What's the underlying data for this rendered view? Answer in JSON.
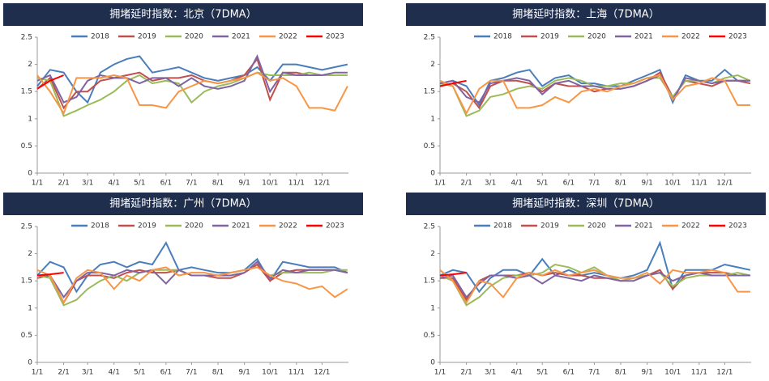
{
  "chart_data": [
    {
      "type": "line",
      "title": "拥堵延时指数：北京（7DMA）",
      "x": [
        1,
        16,
        32,
        47,
        60,
        75,
        91,
        106,
        121,
        136,
        152,
        167,
        182,
        197,
        213,
        228,
        244,
        259,
        274,
        289,
        305,
        320,
        335,
        350,
        365
      ],
      "xlim": [
        1,
        366
      ],
      "xticks": [
        {
          "value": 1,
          "label": "1/1"
        },
        {
          "value": 32,
          "label": "2/1"
        },
        {
          "value": 60,
          "label": "3/1"
        },
        {
          "value": 91,
          "label": "4/1"
        },
        {
          "value": 121,
          "label": "5/1"
        },
        {
          "value": 152,
          "label": "6/1"
        },
        {
          "value": 182,
          "label": "7/1"
        },
        {
          "value": 213,
          "label": "8/1"
        },
        {
          "value": 244,
          "label": "9/1"
        },
        {
          "value": 274,
          "label": "10/1"
        },
        {
          "value": 305,
          "label": "11/1"
        },
        {
          "value": 335,
          "label": "12/1"
        }
      ],
      "ylim": [
        0,
        2.5
      ],
      "yticks": [
        0,
        0.5,
        1,
        1.5,
        2,
        2.5
      ],
      "series": [
        {
          "name": "2018",
          "color": "#4a7ebb",
          "values": [
            1.6,
            1.9,
            1.85,
            1.5,
            1.3,
            1.85,
            2.0,
            2.1,
            2.15,
            1.85,
            1.9,
            1.95,
            1.85,
            1.75,
            1.7,
            1.75,
            1.8,
            1.95,
            1.7,
            2.0,
            2.0,
            1.95,
            1.9,
            1.95,
            2.0
          ]
        },
        {
          "name": "2019",
          "color": "#c0504d",
          "values": [
            1.55,
            1.75,
            1.2,
            1.5,
            1.5,
            1.7,
            1.75,
            1.8,
            1.85,
            1.7,
            1.75,
            1.75,
            1.8,
            1.7,
            1.65,
            1.7,
            1.8,
            2.1,
            1.35,
            1.85,
            1.85,
            1.8,
            1.8,
            1.8,
            1.8
          ]
        },
        {
          "name": "2020",
          "color": "#9bbb59",
          "values": [
            1.75,
            1.7,
            1.05,
            1.15,
            1.25,
            1.35,
            1.5,
            1.7,
            1.8,
            1.65,
            1.7,
            1.65,
            1.3,
            1.5,
            1.6,
            1.65,
            1.75,
            1.85,
            1.8,
            1.8,
            1.8,
            1.85,
            1.8,
            1.8,
            1.8
          ]
        },
        {
          "name": "2021",
          "color": "#8064a2",
          "values": [
            1.7,
            1.8,
            1.3,
            1.4,
            1.7,
            1.8,
            1.75,
            1.75,
            1.65,
            1.75,
            1.75,
            1.6,
            1.75,
            1.6,
            1.55,
            1.6,
            1.7,
            2.15,
            1.5,
            1.85,
            1.8,
            1.8,
            1.8,
            1.85,
            1.85
          ]
        },
        {
          "name": "2022",
          "color": "#f79646",
          "values": [
            1.8,
            1.5,
            1.1,
            1.75,
            1.75,
            1.75,
            1.8,
            1.75,
            1.25,
            1.25,
            1.2,
            1.5,
            1.6,
            1.7,
            1.65,
            1.7,
            1.75,
            1.85,
            1.7,
            1.75,
            1.6,
            1.2,
            1.2,
            1.15,
            1.6
          ]
        },
        {
          "name": "2023",
          "color": "#ff0000",
          "values": [
            1.55,
            1.7,
            1.8,
            null,
            null,
            null,
            null,
            null,
            null,
            null,
            null,
            null,
            null,
            null,
            null,
            null,
            null,
            null,
            null,
            null,
            null,
            null,
            null,
            null,
            null
          ]
        }
      ]
    },
    {
      "type": "line",
      "title": "拥堵延时指数：上海（7DMA）",
      "x": [
        1,
        16,
        32,
        47,
        60,
        75,
        91,
        106,
        121,
        136,
        152,
        167,
        182,
        197,
        213,
        228,
        244,
        259,
        274,
        289,
        305,
        320,
        335,
        350,
        365
      ],
      "xlim": [
        1,
        366
      ],
      "xticks": [
        {
          "value": 1,
          "label": "1/1"
        },
        {
          "value": 32,
          "label": "2/1"
        },
        {
          "value": 60,
          "label": "3/1"
        },
        {
          "value": 91,
          "label": "4/1"
        },
        {
          "value": 121,
          "label": "5/1"
        },
        {
          "value": 152,
          "label": "6/1"
        },
        {
          "value": 182,
          "label": "7/1"
        },
        {
          "value": 213,
          "label": "8/1"
        },
        {
          "value": 244,
          "label": "9/1"
        },
        {
          "value": 274,
          "label": "10/1"
        },
        {
          "value": 305,
          "label": "11/1"
        },
        {
          "value": 335,
          "label": "12/1"
        }
      ],
      "ylim": [
        0,
        2.5
      ],
      "yticks": [
        0,
        0.5,
        1,
        1.5,
        2,
        2.5
      ],
      "series": [
        {
          "name": "2018",
          "color": "#4a7ebb",
          "values": [
            1.65,
            1.7,
            1.6,
            1.25,
            1.7,
            1.75,
            1.85,
            1.9,
            1.6,
            1.75,
            1.8,
            1.65,
            1.65,
            1.6,
            1.6,
            1.7,
            1.8,
            1.9,
            1.3,
            1.8,
            1.7,
            1.7,
            1.9,
            1.7,
            1.7
          ]
        },
        {
          "name": "2019",
          "color": "#c0504d",
          "values": [
            1.6,
            1.65,
            1.5,
            1.2,
            1.6,
            1.7,
            1.7,
            1.65,
            1.5,
            1.65,
            1.6,
            1.6,
            1.5,
            1.55,
            1.55,
            1.6,
            1.7,
            1.85,
            1.4,
            1.7,
            1.65,
            1.6,
            1.7,
            1.7,
            1.65
          ]
        },
        {
          "name": "2020",
          "color": "#9bbb59",
          "values": [
            1.65,
            1.6,
            1.05,
            1.15,
            1.4,
            1.45,
            1.55,
            1.6,
            1.55,
            1.7,
            1.75,
            1.7,
            1.6,
            1.6,
            1.65,
            1.65,
            1.75,
            1.75,
            1.4,
            1.7,
            1.7,
            1.65,
            1.75,
            1.8,
            1.7
          ]
        },
        {
          "name": "2021",
          "color": "#8064a2",
          "values": [
            1.65,
            1.7,
            1.4,
            1.3,
            1.65,
            1.7,
            1.75,
            1.7,
            1.45,
            1.65,
            1.7,
            1.6,
            1.6,
            1.55,
            1.55,
            1.6,
            1.7,
            1.8,
            1.35,
            1.75,
            1.7,
            1.65,
            1.7,
            1.7,
            1.7
          ]
        },
        {
          "name": "2022",
          "color": "#f79646",
          "values": [
            1.7,
            1.6,
            1.1,
            1.55,
            1.7,
            1.7,
            1.2,
            1.2,
            1.25,
            1.4,
            1.3,
            1.5,
            1.55,
            1.5,
            1.6,
            1.65,
            1.75,
            1.8,
            1.35,
            1.6,
            1.65,
            1.75,
            1.7,
            1.25,
            1.25
          ]
        },
        {
          "name": "2023",
          "color": "#ff0000",
          "values": [
            1.6,
            1.65,
            1.7,
            null,
            null,
            null,
            null,
            null,
            null,
            null,
            null,
            null,
            null,
            null,
            null,
            null,
            null,
            null,
            null,
            null,
            null,
            null,
            null,
            null,
            null
          ]
        }
      ]
    },
    {
      "type": "line",
      "title": "拥堵延时指数：广州（7DMA）",
      "x": [
        1,
        16,
        32,
        47,
        60,
        75,
        91,
        106,
        121,
        136,
        152,
        167,
        182,
        197,
        213,
        228,
        244,
        259,
        274,
        289,
        305,
        320,
        335,
        350,
        365
      ],
      "xlim": [
        1,
        366
      ],
      "xticks": [
        {
          "value": 1,
          "label": "1/1"
        },
        {
          "value": 32,
          "label": "2/1"
        },
        {
          "value": 60,
          "label": "3/1"
        },
        {
          "value": 91,
          "label": "4/1"
        },
        {
          "value": 121,
          "label": "5/1"
        },
        {
          "value": 152,
          "label": "6/1"
        },
        {
          "value": 182,
          "label": "7/1"
        },
        {
          "value": 213,
          "label": "8/1"
        },
        {
          "value": 244,
          "label": "9/1"
        },
        {
          "value": 274,
          "label": "10/1"
        },
        {
          "value": 305,
          "label": "11/1"
        },
        {
          "value": 335,
          "label": "12/1"
        }
      ],
      "ylim": [
        0,
        2.5
      ],
      "yticks": [
        0,
        0.5,
        1,
        1.5,
        2,
        2.5
      ],
      "series": [
        {
          "name": "2018",
          "color": "#4a7ebb",
          "values": [
            1.6,
            1.85,
            1.75,
            1.3,
            1.6,
            1.8,
            1.85,
            1.75,
            1.85,
            1.8,
            2.2,
            1.7,
            1.75,
            1.7,
            1.65,
            1.65,
            1.7,
            1.9,
            1.5,
            1.85,
            1.8,
            1.75,
            1.75,
            1.75,
            1.65
          ]
        },
        {
          "name": "2019",
          "color": "#c0504d",
          "values": [
            1.55,
            1.6,
            1.1,
            1.5,
            1.6,
            1.6,
            1.55,
            1.65,
            1.7,
            1.65,
            1.65,
            1.7,
            1.6,
            1.6,
            1.55,
            1.55,
            1.65,
            1.8,
            1.5,
            1.65,
            1.7,
            1.7,
            1.7,
            1.7,
            1.65
          ]
        },
        {
          "name": "2020",
          "color": "#9bbb59",
          "values": [
            1.6,
            1.55,
            1.05,
            1.15,
            1.35,
            1.5,
            1.6,
            1.5,
            1.65,
            1.7,
            1.7,
            1.7,
            1.6,
            1.6,
            1.6,
            1.65,
            1.7,
            1.75,
            1.6,
            1.65,
            1.65,
            1.65,
            1.65,
            1.7,
            1.7
          ]
        },
        {
          "name": "2021",
          "color": "#8064a2",
          "values": [
            1.6,
            1.6,
            1.2,
            1.5,
            1.65,
            1.65,
            1.6,
            1.7,
            1.65,
            1.7,
            1.45,
            1.7,
            1.6,
            1.6,
            1.6,
            1.6,
            1.65,
            1.85,
            1.55,
            1.7,
            1.65,
            1.7,
            1.7,
            1.7,
            1.65
          ]
        },
        {
          "name": "2022",
          "color": "#f79646",
          "values": [
            1.7,
            1.6,
            1.1,
            1.55,
            1.7,
            1.65,
            1.35,
            1.6,
            1.5,
            1.7,
            1.75,
            1.6,
            1.65,
            1.65,
            1.6,
            1.65,
            1.7,
            1.75,
            1.6,
            1.5,
            1.45,
            1.35,
            1.4,
            1.2,
            1.35
          ]
        },
        {
          "name": "2023",
          "color": "#ff0000",
          "values": [
            1.6,
            1.62,
            1.65,
            null,
            null,
            null,
            null,
            null,
            null,
            null,
            null,
            null,
            null,
            null,
            null,
            null,
            null,
            null,
            null,
            null,
            null,
            null,
            null,
            null,
            null
          ]
        }
      ]
    },
    {
      "type": "line",
      "title": "拥堵延时指数：深圳（7DMA）",
      "x": [
        1,
        16,
        32,
        47,
        60,
        75,
        91,
        106,
        121,
        136,
        152,
        167,
        182,
        197,
        213,
        228,
        244,
        259,
        274,
        289,
        305,
        320,
        335,
        350,
        365
      ],
      "xlim": [
        1,
        366
      ],
      "xticks": [
        {
          "value": 1,
          "label": "1/1"
        },
        {
          "value": 32,
          "label": "2/1"
        },
        {
          "value": 60,
          "label": "3/1"
        },
        {
          "value": 91,
          "label": "4/1"
        },
        {
          "value": 121,
          "label": "5/1"
        },
        {
          "value": 152,
          "label": "6/1"
        },
        {
          "value": 182,
          "label": "7/1"
        },
        {
          "value": 213,
          "label": "8/1"
        },
        {
          "value": 244,
          "label": "9/1"
        },
        {
          "value": 274,
          "label": "10/1"
        },
        {
          "value": 305,
          "label": "11/1"
        },
        {
          "value": 335,
          "label": "12/1"
        }
      ],
      "ylim": [
        0,
        2.5
      ],
      "yticks": [
        0,
        0.5,
        1,
        1.5,
        2,
        2.5
      ],
      "series": [
        {
          "name": "2018",
          "color": "#4a7ebb",
          "values": [
            1.6,
            1.7,
            1.65,
            1.3,
            1.55,
            1.7,
            1.7,
            1.6,
            1.9,
            1.6,
            1.7,
            1.6,
            1.65,
            1.6,
            1.55,
            1.6,
            1.7,
            2.2,
            1.35,
            1.7,
            1.7,
            1.7,
            1.8,
            1.75,
            1.7
          ]
        },
        {
          "name": "2019",
          "color": "#c0504d",
          "values": [
            1.55,
            1.55,
            1.15,
            1.5,
            1.6,
            1.6,
            1.6,
            1.65,
            1.6,
            1.65,
            1.6,
            1.6,
            1.55,
            1.55,
            1.5,
            1.55,
            1.6,
            1.7,
            1.35,
            1.6,
            1.65,
            1.65,
            1.65,
            1.6,
            1.6
          ]
        },
        {
          "name": "2020",
          "color": "#9bbb59",
          "values": [
            1.6,
            1.5,
            1.05,
            1.2,
            1.4,
            1.55,
            1.6,
            1.6,
            1.65,
            1.8,
            1.75,
            1.65,
            1.75,
            1.6,
            1.5,
            1.55,
            1.6,
            1.65,
            1.4,
            1.55,
            1.6,
            1.6,
            1.6,
            1.65,
            1.6
          ]
        },
        {
          "name": "2021",
          "color": "#8064a2",
          "values": [
            1.55,
            1.6,
            1.2,
            1.45,
            1.6,
            1.6,
            1.55,
            1.6,
            1.45,
            1.6,
            1.55,
            1.5,
            1.6,
            1.55,
            1.5,
            1.5,
            1.6,
            1.65,
            1.5,
            1.6,
            1.65,
            1.6,
            1.6,
            1.6,
            1.6
          ]
        },
        {
          "name": "2022",
          "color": "#f79646",
          "values": [
            1.7,
            1.5,
            1.1,
            1.5,
            1.45,
            1.2,
            1.55,
            1.65,
            1.6,
            1.7,
            1.6,
            1.65,
            1.7,
            1.6,
            1.55,
            1.55,
            1.65,
            1.45,
            1.7,
            1.65,
            1.65,
            1.7,
            1.65,
            1.3,
            1.3
          ]
        },
        {
          "name": "2023",
          "color": "#ff0000",
          "values": [
            1.6,
            1.62,
            1.65,
            null,
            null,
            null,
            null,
            null,
            null,
            null,
            null,
            null,
            null,
            null,
            null,
            null,
            null,
            null,
            null,
            null,
            null,
            null,
            null,
            null,
            null
          ]
        }
      ]
    }
  ]
}
